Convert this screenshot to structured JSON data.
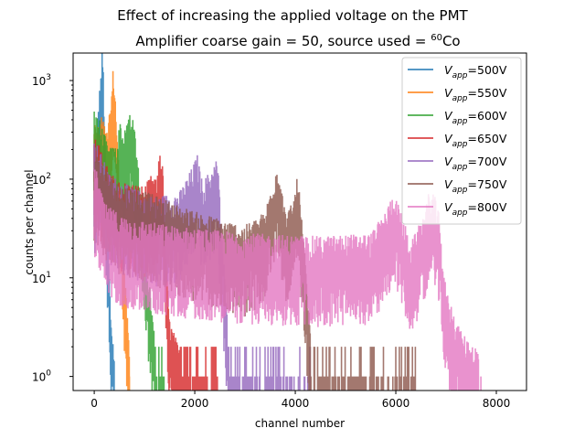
{
  "chart_data": {
    "type": "line",
    "title": "Effect of increasing the applied voltage on the PMT",
    "subtitle_main": "Amplifier coarse gain = 50, source used = ",
    "subtitle_sup": "60",
    "subtitle_tail": "Co",
    "xlabel": "channel number",
    "ylabel": "counts per channel",
    "xlim": [
      -420,
      8600
    ],
    "ylim": [
      0.72,
      1900
    ],
    "yscale": "log",
    "grid": false,
    "legend_position": "top-right",
    "x_ticks": [
      0,
      2000,
      4000,
      6000,
      8000
    ],
    "x_tick_labels": [
      "0",
      "2000",
      "4000",
      "6000",
      "8000"
    ],
    "y_ticks": [
      1,
      10,
      100,
      1000
    ],
    "y_tick_base": "10",
    "y_tick_exponents": [
      "0",
      "1",
      "2",
      "3"
    ],
    "legend_prefix": "V",
    "legend_subscript": "app",
    "series": [
      {
        "name": "=500V",
        "color": "#1f77b4",
        "approx_envelope": {
          "x": [
            30,
            80,
            130,
            160,
            180,
            200,
            230,
            280,
            320,
            360,
            400
          ],
          "y": [
            80,
            300,
            600,
            1250,
            700,
            250,
            60,
            12,
            3,
            1.5,
            1
          ]
        },
        "noise_to_x": 400
      },
      {
        "name": "=550V",
        "color": "#ff7f0e",
        "approx_envelope": {
          "x": [
            30,
            100,
            150,
            200,
            240,
            280,
            330,
            380,
            420,
            480,
            560,
            640,
            700
          ],
          "y": [
            200,
            170,
            260,
            190,
            160,
            200,
            300,
            800,
            380,
            90,
            20,
            3,
            1
          ]
        },
        "noise_to_x": 700
      },
      {
        "name": "=600V",
        "color": "#2ca02c",
        "approx_envelope": {
          "x": [
            30,
            150,
            300,
            450,
            520,
            580,
            640,
            700,
            760,
            820,
            900,
            1050,
            1200
          ],
          "y": [
            300,
            180,
            110,
            120,
            220,
            150,
            180,
            280,
            220,
            160,
            60,
            8,
            1.5
          ]
        },
        "noise_to_x": 1400
      },
      {
        "name": "=650V",
        "color": "#d62728",
        "approx_envelope": {
          "x": [
            30,
            200,
            400,
            600,
            800,
            1000,
            1150,
            1250,
            1300,
            1380,
            1420,
            1500,
            1700
          ],
          "y": [
            150,
            80,
            55,
            50,
            48,
            45,
            60,
            50,
            120,
            60,
            10,
            2,
            1
          ]
        },
        "noise_to_x": 2450
      },
      {
        "name": "=700V",
        "color": "#9467bd",
        "approx_envelope": {
          "x": [
            30,
            300,
            700,
            1200,
            1700,
            1950,
            2050,
            2150,
            2350,
            2450,
            2530,
            2650
          ],
          "y": [
            130,
            60,
            45,
            35,
            40,
            70,
            95,
            50,
            70,
            90,
            20,
            2
          ]
        },
        "noise_to_x": 4300
      },
      {
        "name": "=750V",
        "color": "#8c564b",
        "approx_envelope": {
          "x": [
            30,
            400,
            1000,
            2000,
            3000,
            3400,
            3550,
            3650,
            3800,
            3950,
            4050,
            4200,
            4300
          ],
          "y": [
            100,
            50,
            40,
            25,
            18,
            25,
            55,
            80,
            25,
            30,
            60,
            8,
            1.5
          ]
        },
        "noise_to_x": 6400
      },
      {
        "name": "=800V",
        "color": "#e377c2",
        "approx_envelope": {
          "x": [
            30,
            200,
            600,
            1500,
            3000,
            4500,
            5500,
            5800,
            5950,
            6100,
            6300,
            6500,
            6650,
            6750,
            6850,
            7000,
            7300,
            7650
          ],
          "y": [
            70,
            30,
            22,
            18,
            15,
            14,
            15,
            25,
            40,
            25,
            12,
            20,
            38,
            40,
            25,
            4,
            1.5,
            1
          ]
        },
        "noise_to_x": 7700
      }
    ]
  }
}
